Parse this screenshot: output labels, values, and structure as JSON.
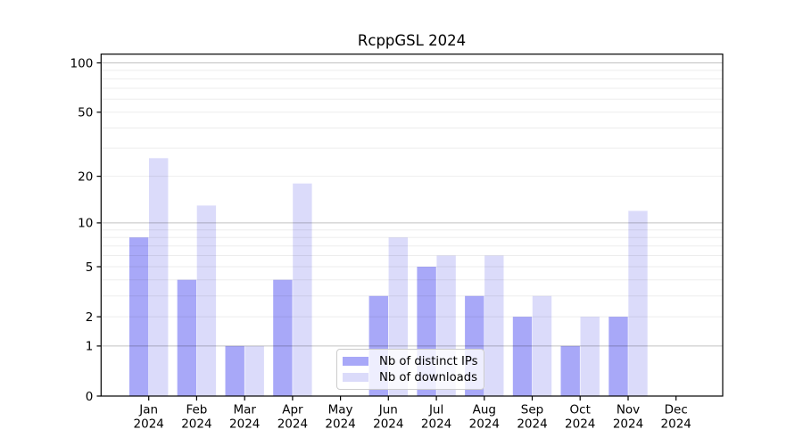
{
  "chart_data": {
    "type": "bar",
    "title": "RcppGSL 2024",
    "categories": [
      "Jan",
      "Feb",
      "Mar",
      "Apr",
      "May",
      "Jun",
      "Jul",
      "Aug",
      "Sep",
      "Oct",
      "Nov",
      "Dec"
    ],
    "year_label": "2024",
    "series": [
      {
        "name": "Nb of distinct IPs",
        "color": "#a8a8f8",
        "values": [
          8,
          4,
          1,
          4,
          0,
          3,
          5,
          3,
          2,
          1,
          2,
          0
        ]
      },
      {
        "name": "Nb of downloads",
        "color": "#dbdbfa",
        "values": [
          26,
          13,
          1,
          18,
          0,
          8,
          6,
          6,
          3,
          2,
          12,
          0
        ]
      }
    ],
    "yscale": "log1p",
    "ylim": [
      0,
      100
    ],
    "yticks": [
      0,
      1,
      2,
      5,
      10,
      20,
      50,
      100
    ],
    "major_gridlines": [
      1,
      10,
      100
    ],
    "minor_gridlines": [
      2,
      3,
      4,
      5,
      6,
      7,
      8,
      9,
      20,
      30,
      40,
      50,
      60,
      70,
      80,
      90
    ],
    "grid": "both",
    "legend_position": "inside-bottom-center",
    "colors": {
      "axis": "#000000",
      "major_grid": "rgba(0,0,0,0.24)",
      "minor_grid": "rgba(0,0,0,0.07)",
      "tick_label": "#000000"
    }
  }
}
